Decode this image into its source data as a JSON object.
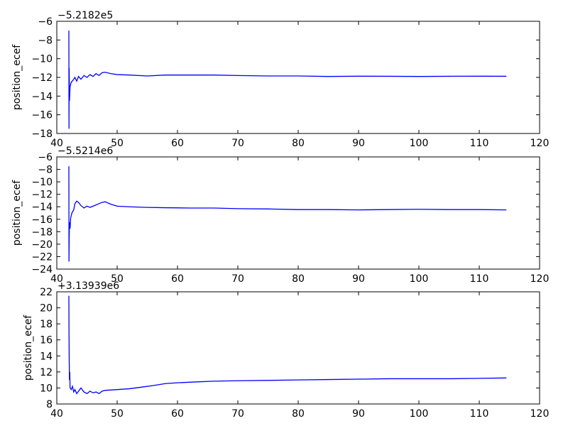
{
  "chart_data": [
    {
      "type": "line",
      "ylabel": "position_ecef",
      "offset_text": "−5.2182e5",
      "xlim": [
        40,
        120
      ],
      "ylim": [
        -18,
        -6
      ],
      "xticks": [
        "40",
        "50",
        "60",
        "70",
        "80",
        "90",
        "100",
        "110",
        "120"
      ],
      "yticks": [
        "−6",
        "−8",
        "−10",
        "−12",
        "−14",
        "−16",
        "−18"
      ],
      "grid": false,
      "series": [
        {
          "color": "#0000ff",
          "points": [
            [
              42.0,
              -7.0
            ],
            [
              42.02,
              -17.5
            ],
            [
              42.05,
              -11.0
            ],
            [
              42.1,
              -14.5
            ],
            [
              42.2,
              -13.0
            ],
            [
              42.4,
              -12.5
            ],
            [
              42.7,
              -12.3
            ],
            [
              43.0,
              -12.0
            ],
            [
              43.3,
              -12.4
            ],
            [
              43.6,
              -11.9
            ],
            [
              44.0,
              -12.2
            ],
            [
              44.5,
              -11.8
            ],
            [
              45.0,
              -12.0
            ],
            [
              45.5,
              -11.7
            ],
            [
              46.0,
              -11.9
            ],
            [
              46.5,
              -11.6
            ],
            [
              47.0,
              -11.8
            ],
            [
              47.5,
              -11.5
            ],
            [
              48.0,
              -11.45
            ],
            [
              49.0,
              -11.6
            ],
            [
              50.0,
              -11.7
            ],
            [
              52.0,
              -11.75
            ],
            [
              55.0,
              -11.85
            ],
            [
              58.0,
              -11.75
            ],
            [
              62.0,
              -11.75
            ],
            [
              66.0,
              -11.75
            ],
            [
              70.0,
              -11.8
            ],
            [
              75.0,
              -11.85
            ],
            [
              80.0,
              -11.85
            ],
            [
              85.0,
              -11.9
            ],
            [
              90.0,
              -11.87
            ],
            [
              95.0,
              -11.88
            ],
            [
              100.0,
              -11.9
            ],
            [
              105.0,
              -11.88
            ],
            [
              110.0,
              -11.87
            ],
            [
              114.5,
              -11.88
            ]
          ]
        }
      ]
    },
    {
      "type": "line",
      "ylabel": "position_ecef",
      "offset_text": "−5.5214e6",
      "xlim": [
        40,
        120
      ],
      "ylim": [
        -24,
        -6
      ],
      "xticks": [
        "40",
        "50",
        "60",
        "70",
        "80",
        "90",
        "100",
        "110",
        "120"
      ],
      "yticks": [
        "−6",
        "−8",
        "−10",
        "−12",
        "−14",
        "−16",
        "−18",
        "−20",
        "−22",
        "−24"
      ],
      "grid": false,
      "series": [
        {
          "color": "#0000ff",
          "points": [
            [
              42.0,
              -7.5
            ],
            [
              42.02,
              -22.8
            ],
            [
              42.05,
              -19.0
            ],
            [
              42.1,
              -16.5
            ],
            [
              42.2,
              -17.5
            ],
            [
              42.3,
              -15.8
            ],
            [
              42.5,
              -15.0
            ],
            [
              42.8,
              -14.5
            ],
            [
              43.0,
              -13.5
            ],
            [
              43.3,
              -13.1
            ],
            [
              43.6,
              -13.3
            ],
            [
              44.0,
              -13.8
            ],
            [
              44.5,
              -14.2
            ],
            [
              45.0,
              -13.9
            ],
            [
              45.5,
              -14.1
            ],
            [
              46.0,
              -13.9
            ],
            [
              46.5,
              -13.7
            ],
            [
              47.0,
              -13.5
            ],
            [
              47.5,
              -13.3
            ],
            [
              48.0,
              -13.2
            ],
            [
              49.0,
              -13.6
            ],
            [
              50.0,
              -13.9
            ],
            [
              52.0,
              -14.0
            ],
            [
              55.0,
              -14.1
            ],
            [
              58.0,
              -14.15
            ],
            [
              62.0,
              -14.2
            ],
            [
              66.0,
              -14.2
            ],
            [
              70.0,
              -14.3
            ],
            [
              75.0,
              -14.35
            ],
            [
              80.0,
              -14.45
            ],
            [
              85.0,
              -14.45
            ],
            [
              90.0,
              -14.5
            ],
            [
              95.0,
              -14.45
            ],
            [
              100.0,
              -14.4
            ],
            [
              105.0,
              -14.45
            ],
            [
              110.0,
              -14.45
            ],
            [
              114.5,
              -14.5
            ]
          ]
        }
      ]
    },
    {
      "type": "line",
      "ylabel": "position_ecef",
      "offset_text": "+3.13939e6",
      "xlim": [
        40,
        120
      ],
      "ylim": [
        8,
        22
      ],
      "xticks": [
        "40",
        "50",
        "60",
        "70",
        "80",
        "90",
        "100",
        "110",
        "120"
      ],
      "yticks": [
        "22",
        "20",
        "18",
        "16",
        "14",
        "12",
        "10",
        "8"
      ],
      "grid": false,
      "series": [
        {
          "color": "#0000ff",
          "points": [
            [
              42.0,
              21.5
            ],
            [
              42.02,
              17.5
            ],
            [
              42.05,
              14.0
            ],
            [
              42.1,
              11.0
            ],
            [
              42.15,
              12.0
            ],
            [
              42.2,
              10.0
            ],
            [
              42.4,
              9.8
            ],
            [
              42.6,
              10.2
            ],
            [
              42.8,
              9.5
            ],
            [
              43.0,
              9.8
            ],
            [
              43.3,
              9.3
            ],
            [
              43.6,
              9.6
            ],
            [
              44.0,
              10.0
            ],
            [
              44.5,
              9.5
            ],
            [
              45.0,
              9.3
            ],
            [
              45.5,
              9.6
            ],
            [
              46.0,
              9.4
            ],
            [
              46.5,
              9.5
            ],
            [
              47.0,
              9.3
            ],
            [
              47.5,
              9.6
            ],
            [
              48.0,
              9.7
            ],
            [
              50.0,
              9.8
            ],
            [
              52.0,
              9.9
            ],
            [
              54.0,
              10.1
            ],
            [
              56.0,
              10.3
            ],
            [
              58.0,
              10.55
            ],
            [
              60.0,
              10.65
            ],
            [
              63.0,
              10.75
            ],
            [
              66.0,
              10.85
            ],
            [
              70.0,
              10.9
            ],
            [
              75.0,
              10.95
            ],
            [
              80.0,
              11.0
            ],
            [
              85.0,
              11.05
            ],
            [
              90.0,
              11.1
            ],
            [
              95.0,
              11.15
            ],
            [
              100.0,
              11.15
            ],
            [
              105.0,
              11.15
            ],
            [
              110.0,
              11.2
            ],
            [
              114.5,
              11.25
            ]
          ]
        }
      ]
    }
  ]
}
